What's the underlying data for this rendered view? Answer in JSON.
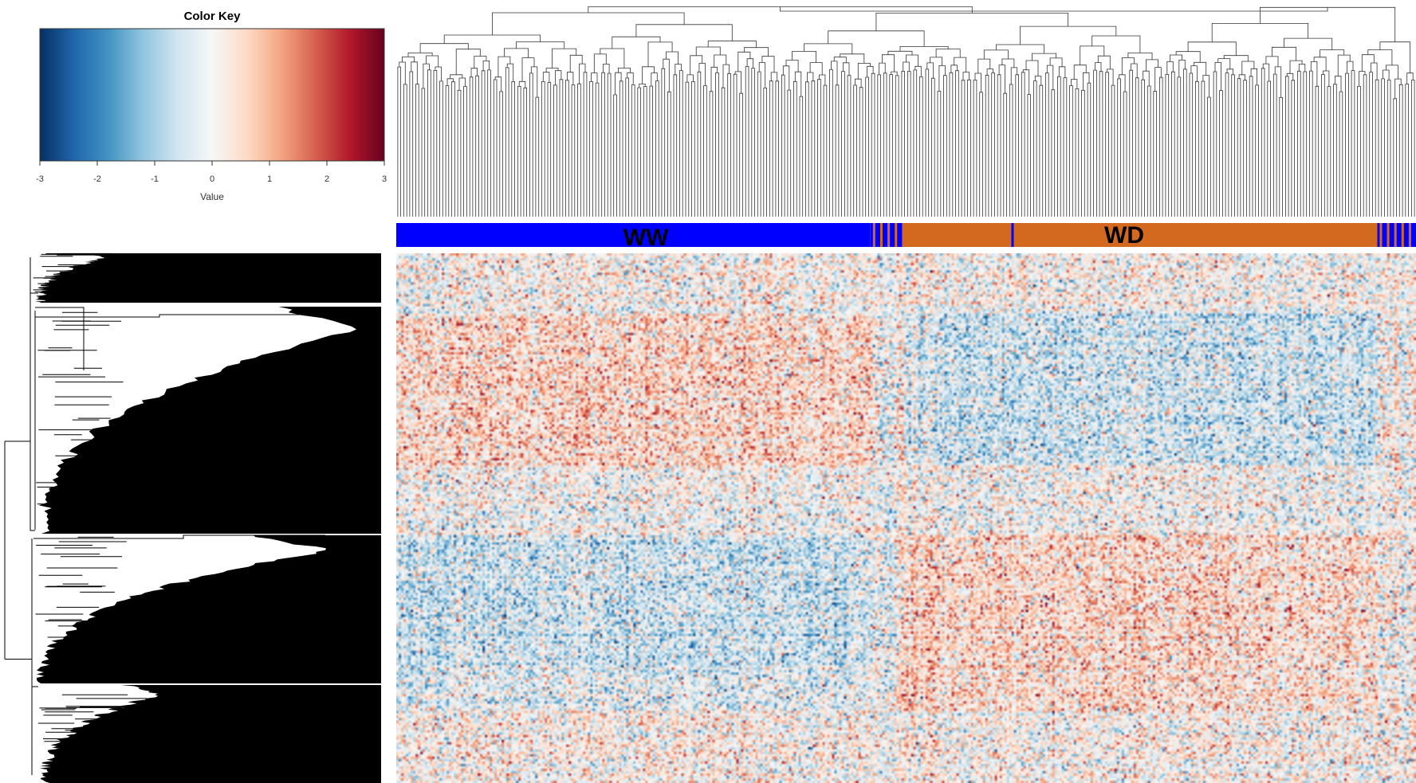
{
  "chart_data": {
    "type": "heatmap",
    "title": "",
    "color_key": {
      "title": "Color Key",
      "xlabel": "Value",
      "range": [
        -3,
        3
      ],
      "ticks": [
        "-3",
        "-2",
        "-1",
        "0",
        "1",
        "2",
        "3"
      ],
      "colors": [
        "#053061",
        "#2166ac",
        "#4393c3",
        "#92c5de",
        "#d1e5f0",
        "#f7f7f7",
        "#fddbc7",
        "#f4a582",
        "#d6604d",
        "#b2182b",
        "#67001f"
      ]
    },
    "column_groups": [
      {
        "label": "WW",
        "color": "#0000ff",
        "fraction": 0.465
      },
      {
        "label": "",
        "color": "mixed",
        "fraction": 0.031
      },
      {
        "label": "WD",
        "color": "#d2691e",
        "fraction": 0.466
      },
      {
        "label": "",
        "color": "mixed",
        "fraction": 0.038
      }
    ],
    "row_dendrogram": "black dense dendrogram with 4 major clusters",
    "column_dendrogram": "gray dendrogram splitting into two main clades (WW, WD)",
    "row_blocks": [
      {
        "rows": [
          0,
          0.11
        ],
        "WW": 0,
        "WD": 0
      },
      {
        "rows": [
          0.11,
          0.4
        ],
        "WW": 0.55,
        "WD": -0.55
      },
      {
        "rows": [
          0.4,
          0.53
        ],
        "WW": 0,
        "WD": 0
      },
      {
        "rows": [
          0.53,
          0.78
        ],
        "WW": -0.55,
        "WD": 0.55
      },
      {
        "rows": [
          0.78,
          0.86
        ],
        "WW": -0.35,
        "WD": 0.45
      },
      {
        "rows": [
          0.86,
          1.0
        ],
        "WW": 0.15,
        "WD": 0.1
      }
    ]
  }
}
